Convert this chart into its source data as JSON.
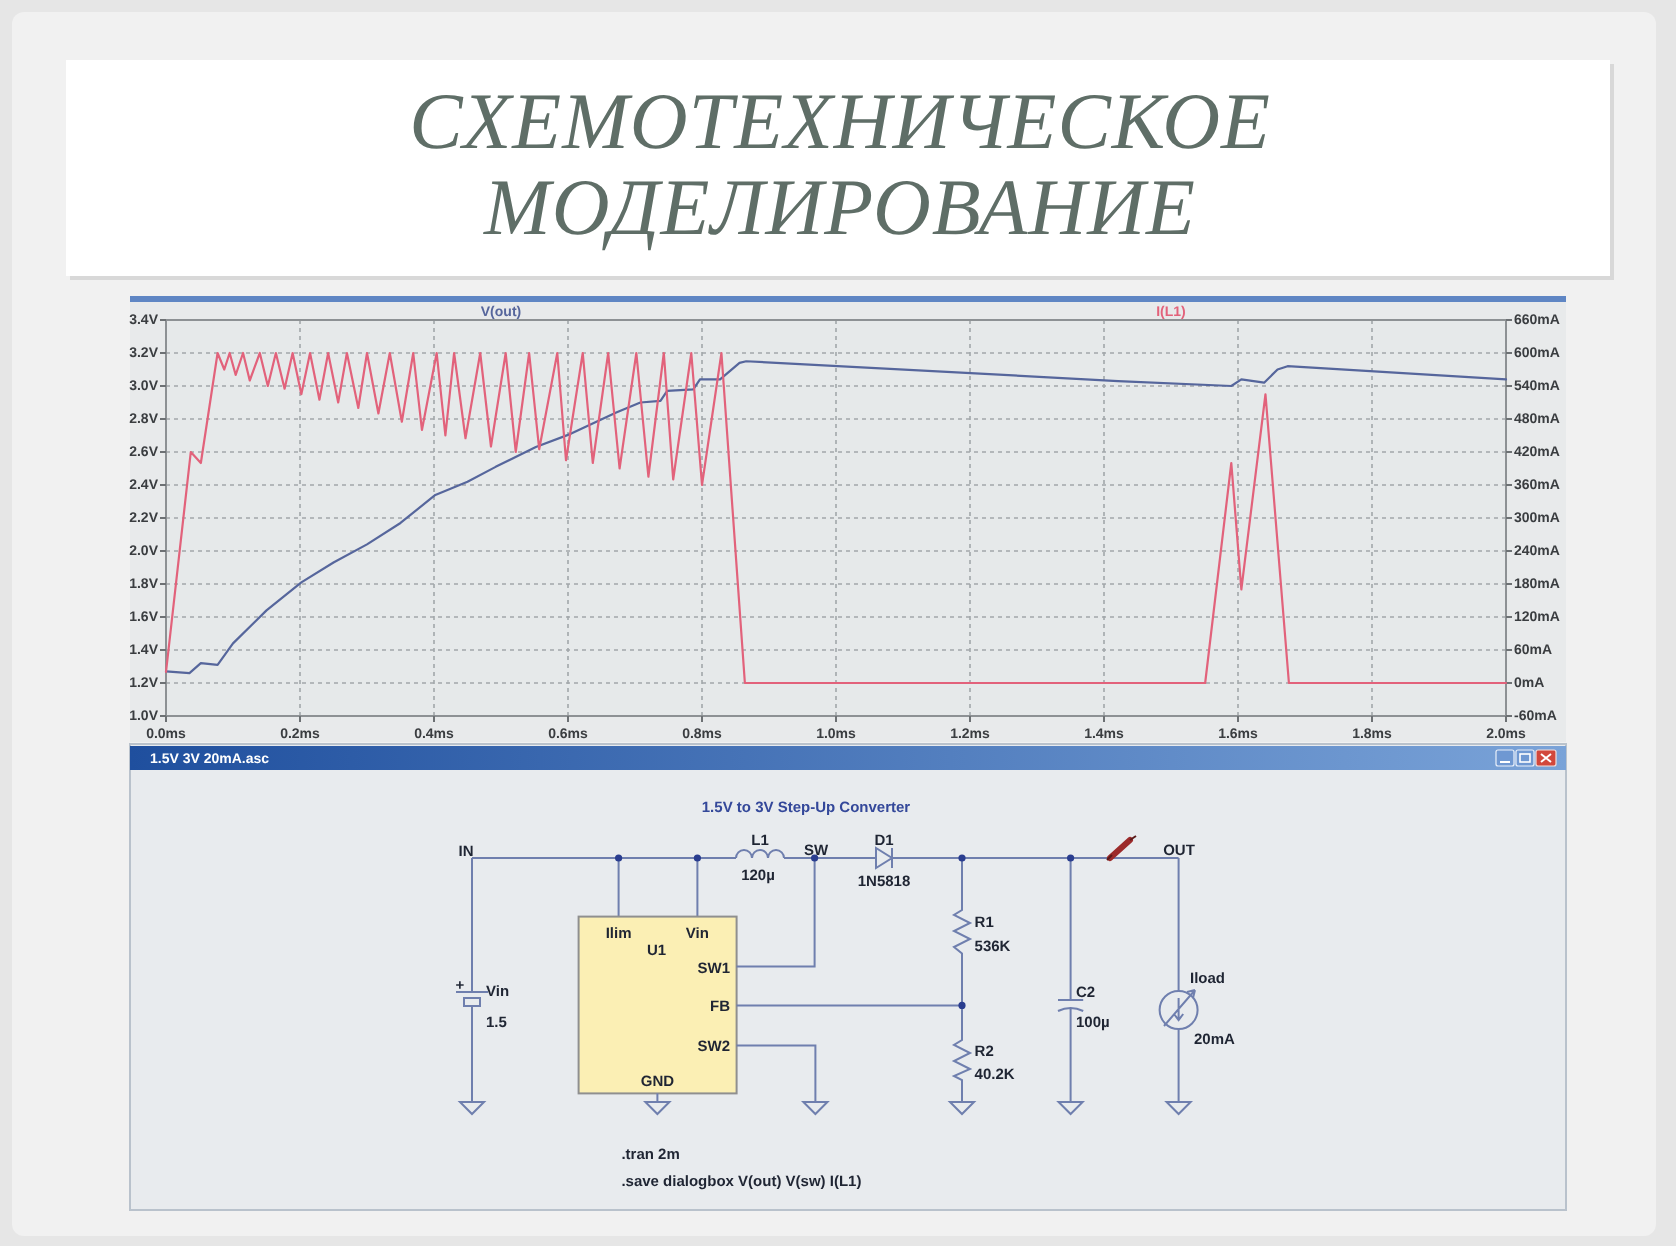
{
  "chart_data": [
    {
      "type": "line",
      "title": "СХЕМОТЕХНИЧЕСКОЕ МОДЕЛИРОВАНИЕ",
      "xlim": [
        0,
        2
      ],
      "xticks": [
        {
          "value": 0,
          "label": "0.0ms"
        },
        {
          "value": 0.2,
          "label": "0.2ms"
        },
        {
          "value": 0.4,
          "label": "0.4ms"
        },
        {
          "value": 0.6,
          "label": "0.6ms"
        },
        {
          "value": 0.8,
          "label": "0.8ms"
        },
        {
          "value": 1.0,
          "label": "1.0ms"
        },
        {
          "value": 1.2,
          "label": "1.2ms"
        },
        {
          "value": 1.4,
          "label": "1.4ms"
        },
        {
          "value": 1.6,
          "label": "1.6ms"
        },
        {
          "value": 1.8,
          "label": "1.8ms"
        },
        {
          "value": 2.0,
          "label": "2.0ms"
        }
      ],
      "ylim": [
        1.0,
        3.4
      ],
      "yticks": [
        {
          "value": 1.0,
          "label": "1.0V"
        },
        {
          "value": 1.2,
          "label": "1.2V"
        },
        {
          "value": 1.4,
          "label": "1.4V"
        },
        {
          "value": 1.6,
          "label": "1.6V"
        },
        {
          "value": 1.8,
          "label": "1.8V"
        },
        {
          "value": 2.0,
          "label": "2.0V"
        },
        {
          "value": 2.2,
          "label": "2.2V"
        },
        {
          "value": 2.4,
          "label": "2.4V"
        },
        {
          "value": 2.6,
          "label": "2.6V"
        },
        {
          "value": 2.8,
          "label": "2.8V"
        },
        {
          "value": 3.0,
          "label": "3.0V"
        },
        {
          "value": 3.2,
          "label": "3.2V"
        },
        {
          "value": 3.4,
          "label": "3.4V"
        }
      ],
      "y2lim": [
        -60,
        660
      ],
      "y2ticks": [
        {
          "value": -60,
          "label": "-60mA"
        },
        {
          "value": 0,
          "label": "0mA"
        },
        {
          "value": 60,
          "label": "60mA"
        },
        {
          "value": 120,
          "label": "120mA"
        },
        {
          "value": 180,
          "label": "180mA"
        },
        {
          "value": 240,
          "label": "240mA"
        },
        {
          "value": 300,
          "label": "300mA"
        },
        {
          "value": 360,
          "label": "360mA"
        },
        {
          "value": 420,
          "label": "420mA"
        },
        {
          "value": 480,
          "label": "480mA"
        },
        {
          "value": 540,
          "label": "540mA"
        },
        {
          "value": 600,
          "label": "600mA"
        },
        {
          "value": 660,
          "label": "660mA"
        }
      ],
      "grid": true,
      "legend": "top",
      "series": [
        {
          "name": "V(out)",
          "color": "#56669c",
          "x": [
            0,
            0.035,
            0.052,
            0.077,
            0.1,
            0.15,
            0.202,
            0.25,
            0.3,
            0.35,
            0.402,
            0.45,
            0.492,
            0.552,
            0.604,
            0.672,
            0.708,
            0.738,
            0.748,
            0.787,
            0.797,
            0.827,
            0.856,
            0.866,
            1.421,
            1.59,
            1.605,
            1.639,
            1.659,
            1.674,
            2.0
          ],
          "values": [
            1.27,
            1.26,
            1.32,
            1.31,
            1.44,
            1.64,
            1.81,
            1.93,
            2.04,
            2.17,
            2.34,
            2.42,
            2.51,
            2.63,
            2.71,
            2.84,
            2.9,
            2.91,
            2.97,
            2.98,
            3.04,
            3.04,
            3.14,
            3.15,
            3.03,
            3.0,
            3.04,
            3.02,
            3.1,
            3.12,
            3.04
          ]
        },
        {
          "name": "I(L1)",
          "color": "#e2627b",
          "axis": "y2",
          "x": [
            0,
            0.037,
            0.052,
            0.077,
            0.087,
            0.095,
            0.104,
            0.115,
            0.125,
            0.14,
            0.152,
            0.164,
            0.177,
            0.189,
            0.202,
            0.215,
            0.229,
            0.242,
            0.257,
            0.27,
            0.287,
            0.3,
            0.317,
            0.334,
            0.352,
            0.369,
            0.382,
            0.404,
            0.417,
            0.43,
            0.447,
            0.469,
            0.485,
            0.507,
            0.522,
            0.542,
            0.557,
            0.584,
            0.597,
            0.622,
            0.637,
            0.66,
            0.677,
            0.702,
            0.72,
            0.743,
            0.757,
            0.784,
            0.8,
            0.829,
            0.864,
            1.551,
            1.59,
            1.605,
            1.641,
            1.676,
            2.0
          ],
          "values": [
            20,
            420,
            400,
            600,
            570,
            600,
            560,
            600,
            550,
            600,
            540,
            600,
            535,
            600,
            525,
            600,
            515,
            600,
            510,
            600,
            500,
            600,
            490,
            600,
            475,
            600,
            460,
            600,
            450,
            600,
            445,
            600,
            430,
            600,
            420,
            600,
            425,
            600,
            405,
            600,
            400,
            600,
            390,
            600,
            375,
            600,
            370,
            600,
            360,
            600,
            0,
            0,
            400,
            170,
            525,
            0,
            0
          ]
        }
      ]
    },
    {
      "type": "other",
      "title": "1.5V 3V 20mA.asc",
      "subtitle": "1.5V to 3V Step-Up Converter",
      "annotations": [
        "IN",
        "L1",
        "120µ",
        "SW",
        "D1",
        "1N5818",
        "OUT",
        "Ilim",
        "Vin",
        "U1",
        "SW1",
        "FB",
        "SW2",
        "GND",
        "+",
        "Vin",
        "1.5",
        "R1",
        "536K",
        "C2",
        "100µ",
        "Iload",
        "20mA",
        "R2",
        "40.2K",
        ".tran 2m",
        ".save dialogbox V(out) V(sw) I(L1)"
      ]
    }
  ]
}
